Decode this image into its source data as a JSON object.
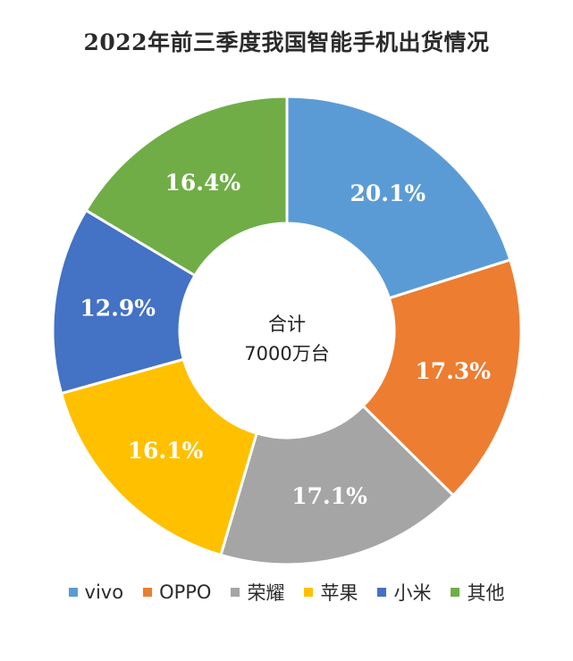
{
  "chart_data": {
    "type": "pie",
    "title": "2022年前三季度我国智能手机出货情况",
    "center_text": [
      "合计",
      "7000万台"
    ],
    "categories": [
      "vivo",
      "OPPO",
      "荣耀",
      "苹果",
      "小米",
      "其他"
    ],
    "values": [
      20.1,
      17.3,
      17.1,
      16.1,
      12.9,
      16.4
    ],
    "labels": [
      "20.1%",
      "17.3%",
      "17.1%",
      "16.1%",
      "12.9%",
      "16.4%"
    ],
    "colors": [
      "#5b9bd5",
      "#ed7d31",
      "#a5a5a5",
      "#ffc000",
      "#4472c4",
      "#70ad47"
    ],
    "legend_position": "bottom"
  }
}
